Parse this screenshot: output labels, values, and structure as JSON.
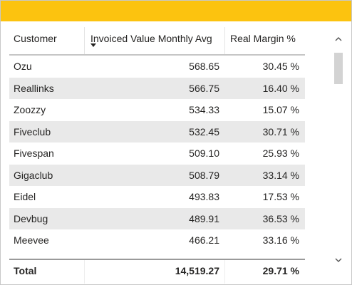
{
  "table": {
    "columns": [
      "Customer",
      "Invoiced Value Monthly Avg",
      "Real Margin %"
    ],
    "sorted_column": "Invoiced Value Monthly Avg",
    "sort_direction": "descending",
    "rows": [
      {
        "customer": "Ozu",
        "invoiced": "568.65",
        "margin": "30.45 %"
      },
      {
        "customer": "Reallinks",
        "invoiced": "566.75",
        "margin": "16.40 %"
      },
      {
        "customer": "Zoozzy",
        "invoiced": "534.33",
        "margin": "15.07 %"
      },
      {
        "customer": "Fiveclub",
        "invoiced": "532.45",
        "margin": "30.71 %"
      },
      {
        "customer": "Fivespan",
        "invoiced": "509.10",
        "margin": "25.93 %"
      },
      {
        "customer": "Gigaclub",
        "invoiced": "508.79",
        "margin": "33.14 %"
      },
      {
        "customer": "Eidel",
        "invoiced": "493.83",
        "margin": "17.53 %"
      },
      {
        "customer": "Devbug",
        "invoiced": "489.91",
        "margin": "36.53 %"
      },
      {
        "customer": "Meevee",
        "invoiced": "466.21",
        "margin": "33.16 %"
      }
    ],
    "total": {
      "label": "Total",
      "invoiced": "14,519.27",
      "margin": "29.71 %"
    }
  },
  "scrollbar": {
    "up_glyph": "^",
    "down_glyph": "v"
  },
  "colors": {
    "header_accent": "#fcc30f",
    "alt_row": "#e9e9e9"
  }
}
